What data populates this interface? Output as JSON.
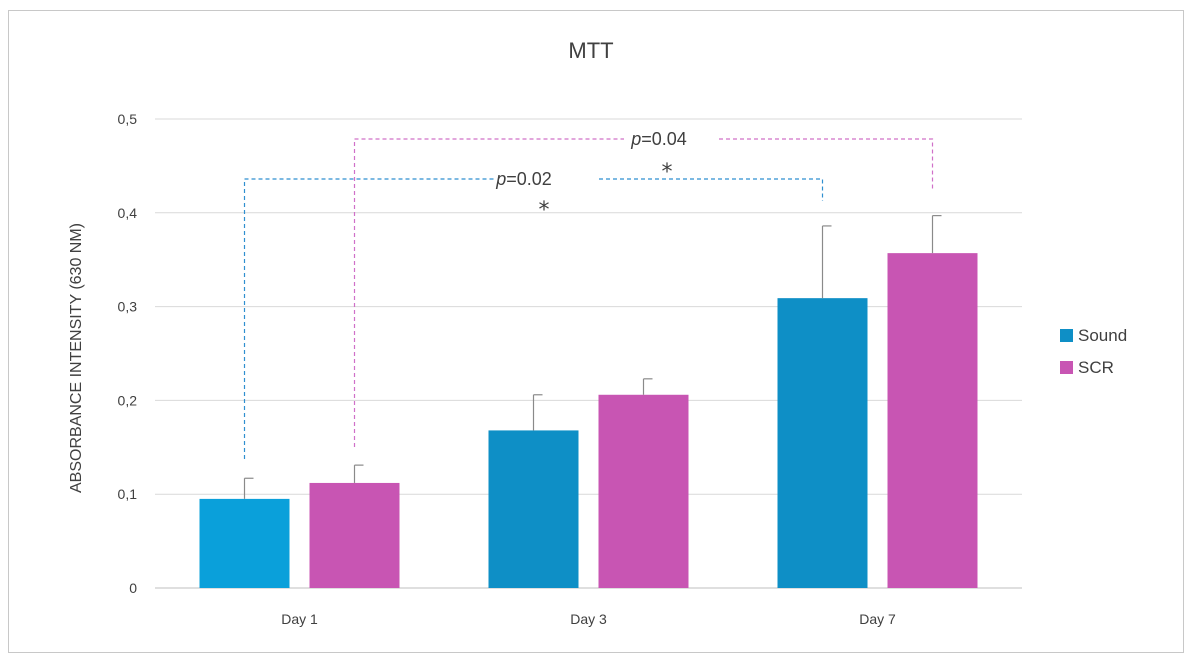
{
  "chart_data": {
    "type": "bar",
    "title": "MTT",
    "xlabel": "",
    "ylabel": "ABSORBANCE INTENSITY (630 NM)",
    "categories": [
      "Day 1",
      "Day 3",
      "Day 7"
    ],
    "ylim": [
      0,
      0.5
    ],
    "yticks": [
      {
        "value": 0,
        "label": "0"
      },
      {
        "value": 0.1,
        "label": "0,1"
      },
      {
        "value": 0.2,
        "label": "0,2"
      },
      {
        "value": 0.3,
        "label": "0,3"
      },
      {
        "value": 0.4,
        "label": "0,4"
      },
      {
        "value": 0.5,
        "label": "0,5"
      }
    ],
    "grid": true,
    "legend_position": "right",
    "series": [
      {
        "name": "Sound",
        "color": "#0e8fc6",
        "values": [
          0.095,
          0.168,
          0.309
        ],
        "errors": [
          0.022,
          0.038,
          0.077
        ]
      },
      {
        "name": "SCR",
        "color": "#c855b3",
        "values": [
          0.112,
          0.206,
          0.357
        ],
        "errors": [
          0.019,
          0.017,
          0.04
        ]
      }
    ],
    "annotations": [
      {
        "p_prefix": "p",
        "p_value": "=0.02",
        "star": "*",
        "series": "Sound",
        "from_category": "Day 1",
        "to_category": "Day 7",
        "color": "#2f8fd0"
      },
      {
        "p_prefix": "p",
        "p_value": "=0.04",
        "star": "*",
        "series": "SCR",
        "from_category": "Day 1",
        "to_category": "Day 7",
        "color": "#d070c8"
      }
    ]
  }
}
